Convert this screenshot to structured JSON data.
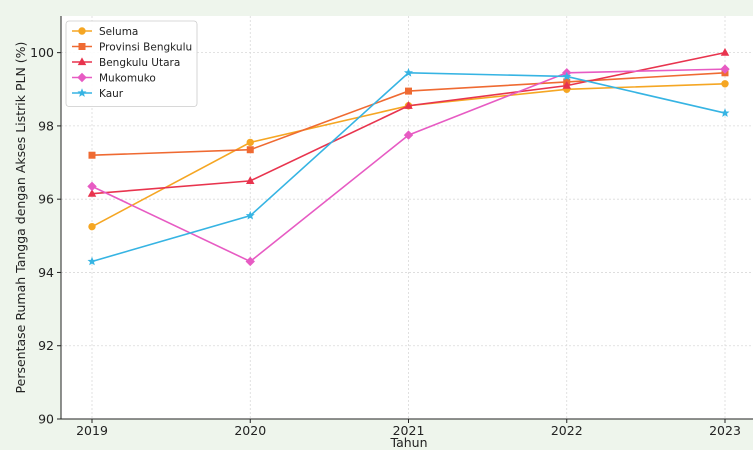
{
  "chart_data": {
    "type": "line",
    "title": "",
    "xlabel": "Tahun",
    "ylabel": "Persentase Rumah Tangga dengan Akses Listrik PLN (%)",
    "x": [
      2019,
      2020,
      2021,
      2022,
      2023
    ],
    "x_tick_labels": [
      "2019",
      "2020",
      "2021",
      "2022",
      "2023"
    ],
    "ylim": [
      90,
      101
    ],
    "y_ticks": [
      90,
      92,
      94,
      96,
      98,
      100
    ],
    "y_tick_labels": [
      "90",
      "92",
      "94",
      "96",
      "98",
      "100"
    ],
    "grid": true,
    "legend_position": "top-left",
    "series": [
      {
        "name": "Seluma",
        "color": "#f5a623",
        "marker": "circle",
        "values": [
          95.25,
          97.55,
          98.55,
          99.0,
          99.15
        ]
      },
      {
        "name": "Provinsi Bengkulu",
        "color": "#ef6a32",
        "marker": "square",
        "values": [
          97.2,
          97.35,
          98.95,
          99.2,
          99.45
        ]
      },
      {
        "name": "Bengkulu Utara",
        "color": "#e8344e",
        "marker": "triangle",
        "values": [
          96.15,
          96.5,
          98.55,
          99.1,
          100.0
        ]
      },
      {
        "name": "Mukomuko",
        "color": "#e75bc3",
        "marker": "diamond",
        "values": [
          96.35,
          94.3,
          97.75,
          99.45,
          99.55
        ]
      },
      {
        "name": "Kaur",
        "color": "#36b4e3",
        "marker": "star",
        "values": [
          94.3,
          95.55,
          99.45,
          99.35,
          98.35
        ]
      }
    ]
  }
}
